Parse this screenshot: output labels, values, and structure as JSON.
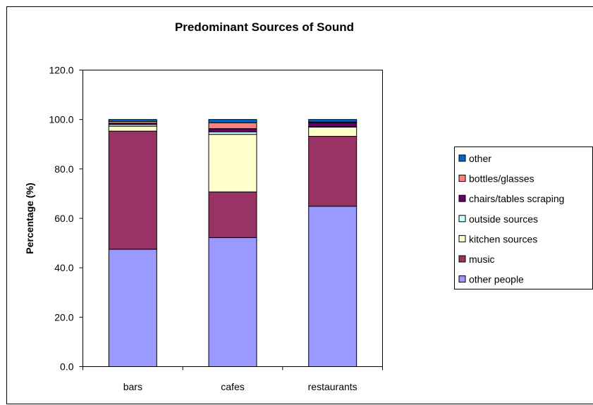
{
  "chart_data": {
    "type": "bar",
    "stacked": true,
    "title": "Predominant Sources of Sound",
    "xlabel": "",
    "ylabel": "Percentage (%)",
    "ylim": [
      0,
      120
    ],
    "yticks": [
      "0.0",
      "20.0",
      "40.0",
      "60.0",
      "80.0",
      "100.0",
      "120.0"
    ],
    "grid": false,
    "legend_position": "right",
    "categories": [
      "bars",
      "cafes",
      "restaurants"
    ],
    "series": [
      {
        "name": "other people",
        "color": "#9999ff",
        "values": [
          47.5,
          52.2,
          64.9
        ]
      },
      {
        "name": "music",
        "color": "#993366",
        "values": [
          47.8,
          18.5,
          28.3
        ]
      },
      {
        "name": "kitchen sources",
        "color": "#ffffcc",
        "values": [
          2.0,
          23.3,
          3.7
        ]
      },
      {
        "name": "outside sources",
        "color": "#ccffff",
        "values": [
          0.7,
          1.0,
          0.3
        ]
      },
      {
        "name": "chairs/tables scraping",
        "color": "#660066",
        "values": [
          0.5,
          1.3,
          1.5
        ]
      },
      {
        "name": "bottles/glasses",
        "color": "#ff8080",
        "values": [
          0.7,
          2.4,
          0.3
        ]
      },
      {
        "name": "other",
        "color": "#0066cc",
        "values": [
          0.8,
          1.3,
          1.0
        ]
      }
    ]
  }
}
